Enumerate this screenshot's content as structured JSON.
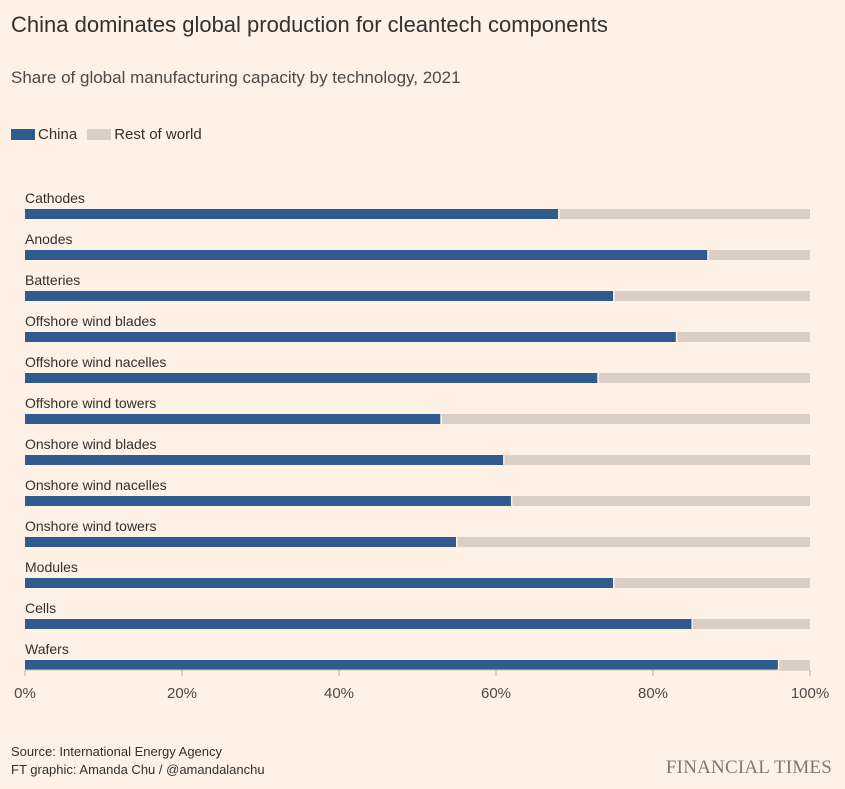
{
  "title": "China dominates global production for cleantech components",
  "subtitle": "Share of global manufacturing capacity by technology, 2021",
  "legend": [
    {
      "label": "China",
      "color": "#2f5b8e"
    },
    {
      "label": "Rest of world",
      "color": "#dbcec5"
    }
  ],
  "source_line": "Source: International Energy Agency",
  "credit_line": "FT graphic: Amanda Chu / @amandalanchu",
  "brand": "FINANCIAL TIMES",
  "chart_data": {
    "type": "bar",
    "orientation": "horizontal",
    "stacked": true,
    "categories": [
      "Cathodes",
      "Anodes",
      "Batteries",
      "Offshore wind blades",
      "Offshore wind nacelles",
      "Offshore wind towers",
      "Onshore wind blades",
      "Onshore wind nacelles",
      "Onshore wind towers",
      "Modules",
      "Cells",
      "Wafers"
    ],
    "series": [
      {
        "name": "China",
        "color": "#2f5b8e",
        "values": [
          68,
          87,
          75,
          83,
          73,
          53,
          61,
          62,
          55,
          75,
          85,
          96
        ]
      },
      {
        "name": "Rest of world",
        "color": "#dbcec5",
        "values": [
          32,
          13,
          25,
          17,
          27,
          47,
          39,
          38,
          45,
          25,
          15,
          4
        ]
      }
    ],
    "xlim": [
      0,
      100
    ],
    "xticks": [
      "0%",
      "20%",
      "40%",
      "60%",
      "80%",
      "100%"
    ],
    "tick_values": [
      0,
      20,
      40,
      60,
      80,
      100
    ],
    "grid": false
  }
}
